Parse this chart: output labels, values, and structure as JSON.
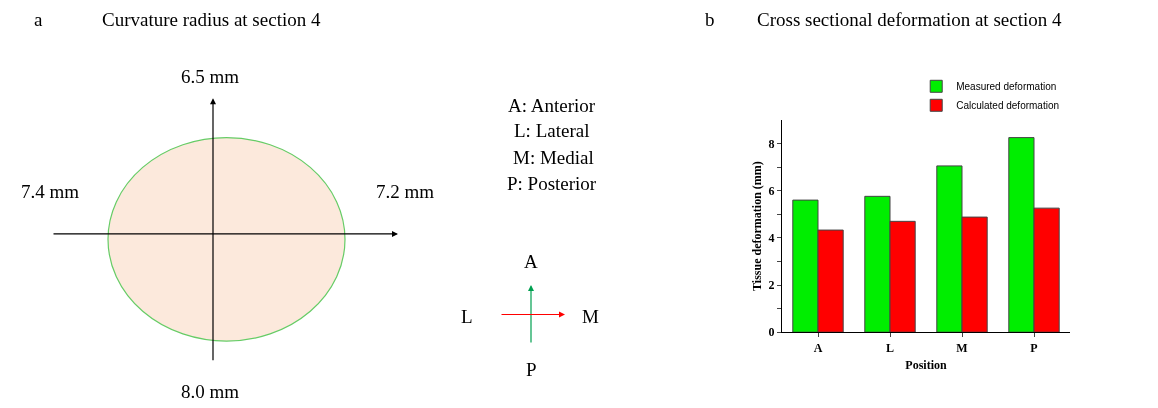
{
  "chart_data": [
    {
      "type": "other",
      "title": "Curvature radius at section 4",
      "annotations": [
        "a",
        "6.5 mm",
        "7.4 mm",
        "7.2 mm",
        "8.0 mm",
        "A: Anterior",
        "L: Lateral",
        "M: Medial",
        "P: Posterior",
        "A",
        "L",
        "M",
        "P"
      ]
    },
    {
      "type": "bar",
      "title": "Cross sectional deformation at section 4",
      "annotations": [
        "b"
      ],
      "xlabel": "Position",
      "ylabel": "Tissue deformation (mm)",
      "categories": [
        "A",
        "L",
        "M",
        "P"
      ],
      "series": [
        {
          "name": "Measured deformation",
          "color": "#00ee00",
          "values": [
            5.6,
            5.76,
            7.05,
            8.25
          ]
        },
        {
          "name": "Calculated deformation",
          "color": "#ff0000",
          "values": [
            4.33,
            4.7,
            4.88,
            5.26
          ]
        }
      ],
      "ylim": [
        0,
        9
      ],
      "yticks": [
        0,
        {
          "value": 1,
          "label": null
        },
        2,
        {
          "value": 3,
          "label": null
        },
        4,
        {
          "value": 5,
          "label": null
        },
        6,
        {
          "value": 7,
          "label": null
        },
        8
      ],
      "legend": "top right"
    }
  ]
}
